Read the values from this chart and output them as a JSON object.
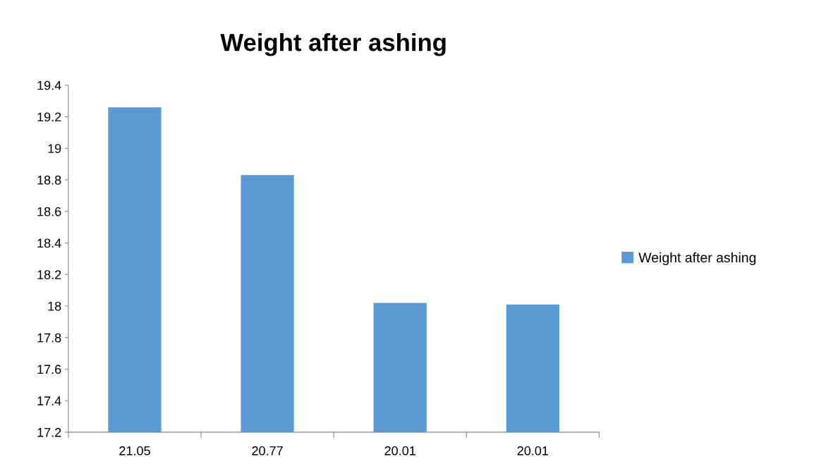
{
  "chart_data": {
    "type": "bar",
    "title": "Weight after ashing",
    "categories": [
      "21.05",
      "20.77",
      "20.01",
      "20.01"
    ],
    "series": [
      {
        "name": "Weight after ashing",
        "color": "#5b9bd5",
        "values": [
          19.26,
          18.83,
          18.02,
          18.01
        ]
      }
    ],
    "ylim": [
      17.2,
      19.4
    ],
    "yticks": [
      {
        "value": 17.2,
        "label": "17.2"
      },
      {
        "value": 17.4,
        "label": "17.4"
      },
      {
        "value": 17.6,
        "label": "17.6"
      },
      {
        "value": 17.8,
        "label": "17.8"
      },
      {
        "value": 18,
        "label": "18"
      },
      {
        "value": 18.2,
        "label": "18.2"
      },
      {
        "value": 18.4,
        "label": "18.4"
      },
      {
        "value": 18.6,
        "label": "18.6"
      },
      {
        "value": 18.8,
        "label": "18.8"
      },
      {
        "value": 19,
        "label": "19"
      },
      {
        "value": 19.2,
        "label": "19.2"
      },
      {
        "value": 19.4,
        "label": "19.4"
      }
    ],
    "grid": false,
    "legend": "right"
  }
}
